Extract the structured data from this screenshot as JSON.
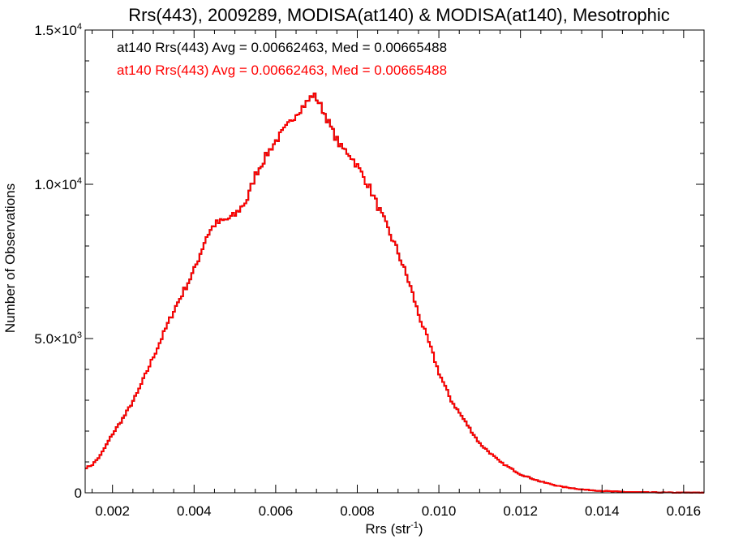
{
  "chart_data": {
    "type": "line",
    "step": true,
    "title": "Rrs(443), 2009289, MODISA(at140) & MODISA(at140), Mesotrophic",
    "xlabel": "Rrs (str",
    "xlabel_sup": "-1",
    "xlabel_tail": ")",
    "ylabel": "Number of Observations",
    "xlim": [
      0.00133,
      0.0165
    ],
    "ylim": [
      0,
      15000
    ],
    "grid": false,
    "xticks": [
      {
        "value": 0.002,
        "label": "0.002"
      },
      {
        "value": 0.004,
        "label": "0.004"
      },
      {
        "value": 0.006,
        "label": "0.006"
      },
      {
        "value": 0.008,
        "label": "0.008"
      },
      {
        "value": 0.01,
        "label": "0.010"
      },
      {
        "value": 0.012,
        "label": "0.012"
      },
      {
        "value": 0.014,
        "label": "0.014"
      },
      {
        "value": 0.016,
        "label": "0.016"
      }
    ],
    "yticks": [
      {
        "value": 0,
        "label": "0",
        "sup": ""
      },
      {
        "value": 5000,
        "label": "5.0×10",
        "sup": "3"
      },
      {
        "value": 10000,
        "label": "1.0×10",
        "sup": "4"
      },
      {
        "value": 15000,
        "label": "1.5×10",
        "sup": "4"
      }
    ],
    "legend_position": "top-left",
    "annotations": [
      {
        "text": "at140 Rrs(443) Avg = 0.00662463, Med = 0.00665488",
        "color": "#000000"
      },
      {
        "text": "at140 Rrs(443) Avg = 0.00662463, Med = 0.00665488",
        "color": "#ff0000"
      }
    ],
    "series": [
      {
        "color": "#000000",
        "x": [
          0.00133,
          0.0015,
          0.0017,
          0.002,
          0.0023,
          0.0026,
          0.003,
          0.0035,
          0.004,
          0.0043,
          0.0045,
          0.0048,
          0.005,
          0.0053,
          0.0055,
          0.0058,
          0.006,
          0.0063,
          0.0065,
          0.0068,
          0.0069,
          0.007,
          0.0072,
          0.0074,
          0.0076,
          0.0078,
          0.008,
          0.0083,
          0.0085,
          0.0088,
          0.009,
          0.0093,
          0.0095,
          0.0098,
          0.01,
          0.0103,
          0.0105,
          0.0108,
          0.011,
          0.0115,
          0.012,
          0.0125,
          0.013,
          0.0135,
          0.014,
          0.0145,
          0.015,
          0.0155,
          0.016,
          0.0165
        ],
        "y": [
          800,
          900,
          1200,
          1900,
          2500,
          3200,
          4400,
          5900,
          7200,
          8300,
          8700,
          8850,
          9000,
          9500,
          10300,
          11000,
          11400,
          11900,
          12300,
          12700,
          12900,
          12800,
          12300,
          11700,
          11200,
          11000,
          10600,
          9900,
          9300,
          8400,
          7800,
          6700,
          5800,
          4700,
          3900,
          3000,
          2600,
          2000,
          1600,
          1000,
          600,
          360,
          200,
          110,
          60,
          30,
          18,
          10,
          5,
          3
        ]
      },
      {
        "color": "#ff0000",
        "x": [
          0.00133,
          0.0015,
          0.0017,
          0.002,
          0.0023,
          0.0026,
          0.003,
          0.0035,
          0.004,
          0.0043,
          0.0045,
          0.0048,
          0.005,
          0.0053,
          0.0055,
          0.0058,
          0.006,
          0.0063,
          0.0065,
          0.0068,
          0.0069,
          0.007,
          0.0072,
          0.0074,
          0.0076,
          0.0078,
          0.008,
          0.0083,
          0.0085,
          0.0088,
          0.009,
          0.0093,
          0.0095,
          0.0098,
          0.01,
          0.0103,
          0.0105,
          0.0108,
          0.011,
          0.0115,
          0.012,
          0.0125,
          0.013,
          0.0135,
          0.014,
          0.0145,
          0.015,
          0.0155,
          0.016,
          0.0165
        ],
        "y": [
          800,
          900,
          1200,
          1900,
          2500,
          3200,
          4400,
          5900,
          7200,
          8300,
          8700,
          8850,
          9000,
          9500,
          10300,
          11000,
          11400,
          11900,
          12300,
          12700,
          12900,
          12800,
          12300,
          11700,
          11200,
          11000,
          10600,
          9900,
          9300,
          8400,
          7800,
          6700,
          5800,
          4700,
          3900,
          3000,
          2600,
          2000,
          1600,
          1000,
          600,
          360,
          200,
          110,
          60,
          30,
          18,
          10,
          5,
          3
        ]
      }
    ]
  }
}
